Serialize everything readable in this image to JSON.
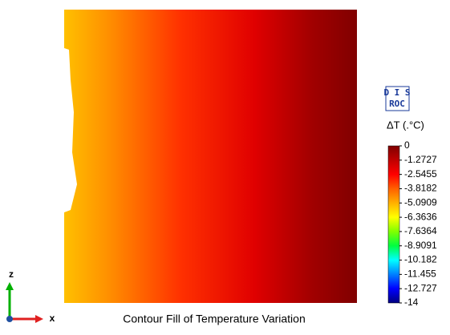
{
  "chart_data": {
    "type": "contour",
    "title": "Contour Fill of Temperature Variation",
    "colorbar_label": "ΔT (.°C)",
    "logo": [
      "D I S",
      "ROC"
    ],
    "x_axis_label": "x",
    "z_axis_label": "z",
    "zlim": [
      -14,
      0
    ],
    "zticks": [
      0,
      -1.2727,
      -2.5455,
      -3.8182,
      -5.0909,
      -6.3636,
      -7.6364,
      -8.9091,
      -10.182,
      -11.455,
      -12.727,
      -14
    ],
    "colormap": [
      "#000080",
      "#0000ff",
      "#0080ff",
      "#00ffff",
      "#00ff40",
      "#80ff00",
      "#ffff00",
      "#ffb000",
      "#ff6000",
      "#ff0000",
      "#c00000",
      "#800000"
    ]
  }
}
